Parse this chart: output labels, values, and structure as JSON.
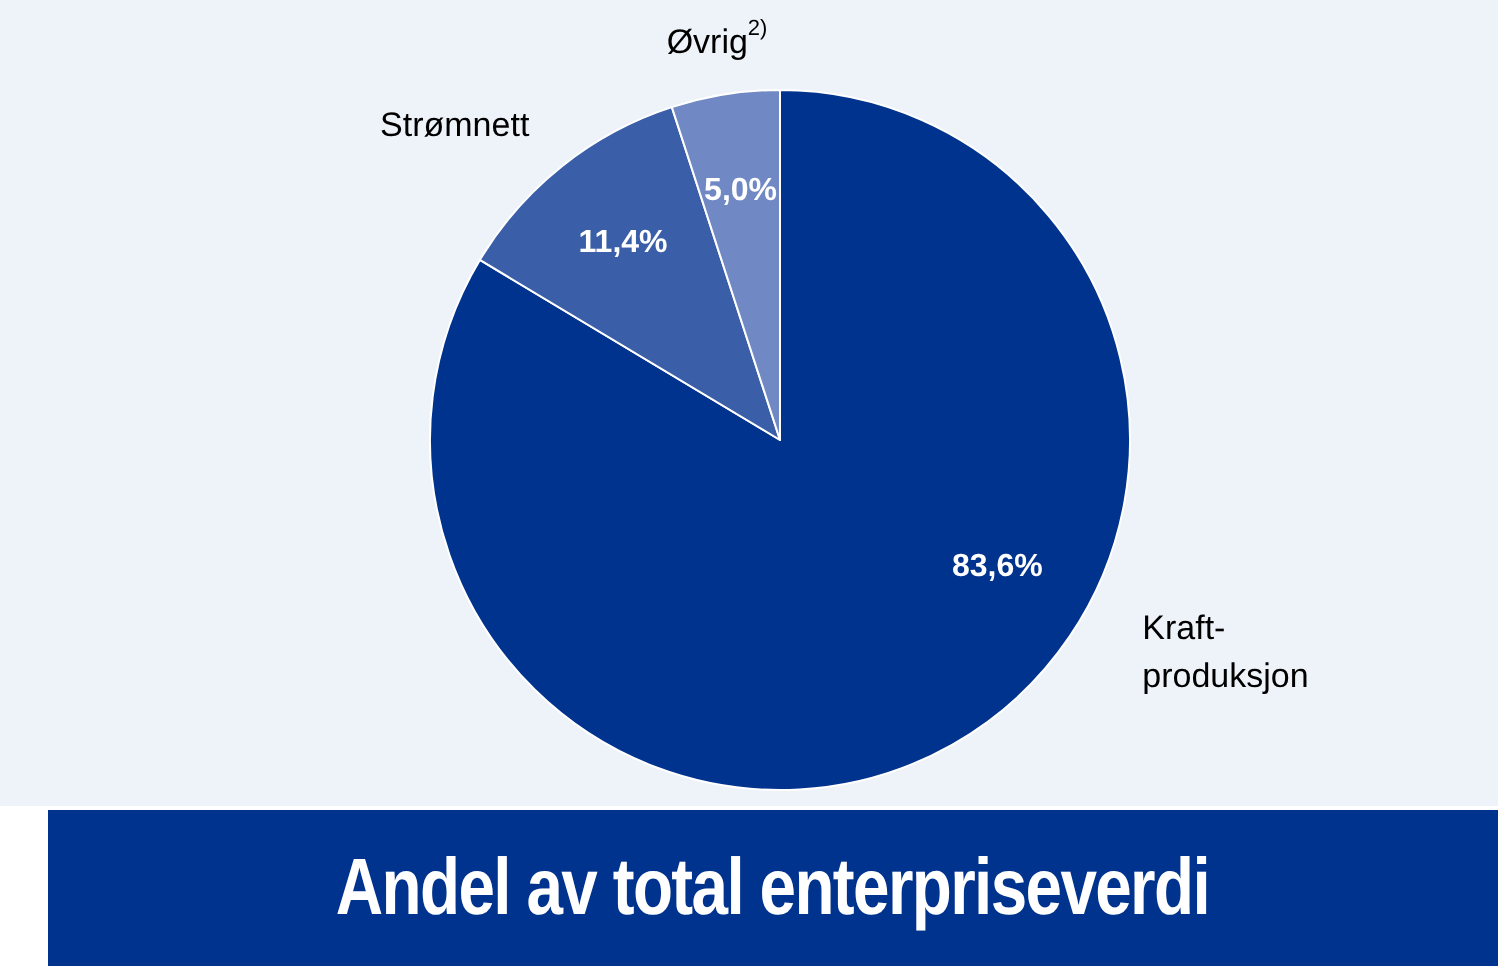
{
  "chart_data": {
    "type": "pie",
    "title": "Andel av total enterpriseverdi",
    "categories": [
      "Kraft-produksjon",
      "Strømnett",
      "Øvrig$^{2)}$"
    ],
    "values": [
      83.6,
      11.4,
      5.0
    ],
    "colors": [
      "#00338d",
      "#3a5ea8",
      "#7089c4"
    ],
    "value_labels": [
      "83,6%",
      "11,4%",
      "5,0%"
    ]
  }
}
